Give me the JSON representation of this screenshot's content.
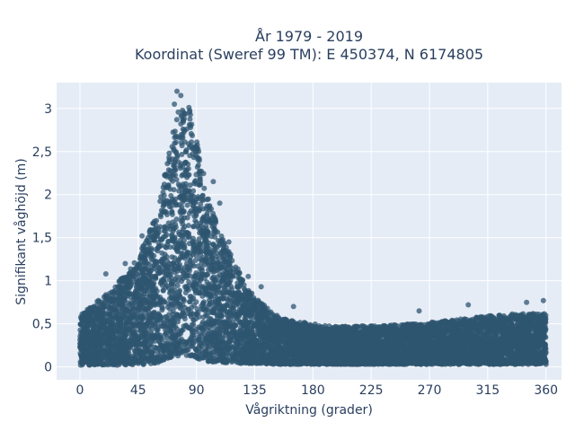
{
  "chart_data": {
    "type": "scatter",
    "title_line1": "År 1979 - 2019",
    "title_line2": "Koordinat (Sweref 99 TM): E 450374, N 6174805",
    "xlabel": "Vågriktning (grader)",
    "ylabel": "Signifikant våghöjd (m)",
    "xlim": [
      -18,
      372
    ],
    "ylim": [
      -0.15,
      3.3
    ],
    "xticks": [
      0,
      45,
      90,
      135,
      180,
      225,
      270,
      315,
      360
    ],
    "xtick_labels": [
      "0",
      "45",
      "90",
      "135",
      "180",
      "225",
      "270",
      "315",
      "360"
    ],
    "yticks": [
      0,
      0.5,
      1,
      1.5,
      2,
      2.5,
      3
    ],
    "ytick_labels": [
      "0",
      "0,5",
      "1",
      "1,5",
      "2",
      "2,5",
      "3"
    ],
    "grid": true,
    "marker_color": "#2f5670",
    "plot_background": "#e5ecf6",
    "envelope": {
      "direction": [
        0,
        10,
        20,
        30,
        40,
        50,
        60,
        65,
        70,
        75,
        80,
        85,
        90,
        95,
        100,
        105,
        110,
        120,
        130,
        140,
        150,
        160,
        180,
        200,
        230,
        260,
        290,
        320,
        340,
        360
      ],
      "max_height": [
        0.6,
        0.72,
        0.85,
        1.0,
        1.15,
        1.45,
        1.8,
        2.2,
        2.6,
        2.95,
        3.1,
        3.0,
        2.7,
        2.3,
        1.9,
        1.7,
        1.5,
        1.2,
        0.9,
        0.75,
        0.62,
        0.55,
        0.5,
        0.47,
        0.48,
        0.5,
        0.55,
        0.6,
        0.62,
        0.62
      ],
      "min_height": [
        0.02,
        0.02,
        0.02,
        0.02,
        0.02,
        0.02,
        0.05,
        0.08,
        0.1,
        0.12,
        0.12,
        0.12,
        0.1,
        0.08,
        0.06,
        0.05,
        0.05,
        0.04,
        0.04,
        0.04,
        0.03,
        0.03,
        0.03,
        0.03,
        0.03,
        0.03,
        0.03,
        0.03,
        0.03,
        0.03
      ]
    },
    "outliers": [
      {
        "x": 75,
        "y": 3.2
      },
      {
        "x": 78,
        "y": 3.15
      },
      {
        "x": 73,
        "y": 3.05
      },
      {
        "x": 103,
        "y": 2.15
      },
      {
        "x": 108,
        "y": 1.9
      },
      {
        "x": 115,
        "y": 1.45
      },
      {
        "x": 130,
        "y": 1.05
      },
      {
        "x": 140,
        "y": 0.93
      },
      {
        "x": 165,
        "y": 0.7
      },
      {
        "x": 262,
        "y": 0.65
      },
      {
        "x": 300,
        "y": 0.72
      },
      {
        "x": 345,
        "y": 0.75
      },
      {
        "x": 358,
        "y": 0.77
      },
      {
        "x": 20,
        "y": 1.08
      },
      {
        "x": 35,
        "y": 1.2
      },
      {
        "x": 48,
        "y": 1.52
      }
    ]
  }
}
